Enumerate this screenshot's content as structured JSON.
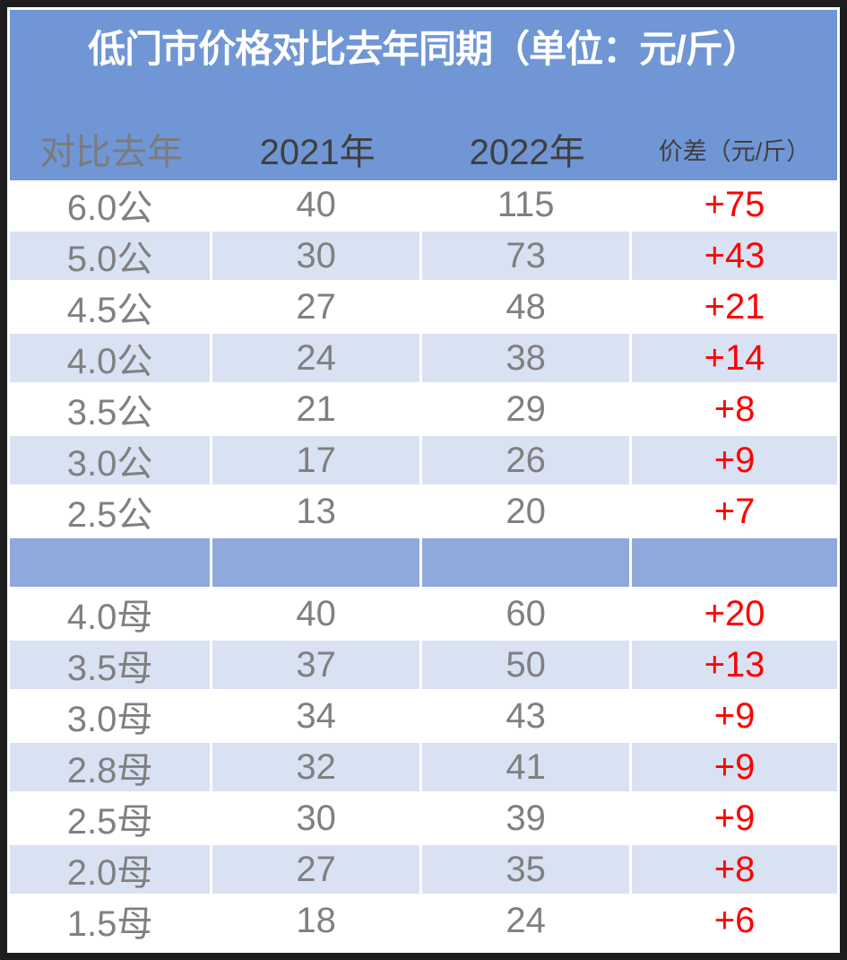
{
  "title": "低门市价格对比去年同期（单位：元/斤）",
  "colors": {
    "frame_border": "#1e1e1e",
    "header_band_bg": "#7096d5",
    "alt_row_bg": "#d9e2f3",
    "separator_row_bg": "#8fa9dc",
    "title_text": "#ffffff",
    "header_muted_text": "#7b7b7b",
    "header_dark_text": "#3f3f3f",
    "value_text": "#808080",
    "diff_text": "#ff0000"
  },
  "chart_data": {
    "type": "table",
    "title": "低门市价格对比去年同期（单位：元/斤）",
    "columns": [
      "对比去年",
      "2021年",
      "2022年",
      "价差（元/斤）"
    ],
    "sections": [
      {
        "rows": [
          {
            "label": "6.0公",
            "v2021": "40",
            "v2022": "115",
            "diff": "+75"
          },
          {
            "label": "5.0公",
            "v2021": "30",
            "v2022": "73",
            "diff": "+43"
          },
          {
            "label": "4.5公",
            "v2021": "27",
            "v2022": "48",
            "diff": "+21"
          },
          {
            "label": "4.0公",
            "v2021": "24",
            "v2022": "38",
            "diff": "+14"
          },
          {
            "label": "3.5公",
            "v2021": "21",
            "v2022": "29",
            "diff": "+8"
          },
          {
            "label": "3.0公",
            "v2021": "17",
            "v2022": "26",
            "diff": "+9"
          },
          {
            "label": "2.5公",
            "v2021": "13",
            "v2022": "20",
            "diff": "+7"
          }
        ]
      },
      {
        "rows": [
          {
            "label": "4.0母",
            "v2021": "40",
            "v2022": "60",
            "diff": "+20"
          },
          {
            "label": "3.5母",
            "v2021": "37",
            "v2022": "50",
            "diff": "+13"
          },
          {
            "label": "3.0母",
            "v2021": "34",
            "v2022": "43",
            "diff": "+9"
          },
          {
            "label": "2.8母",
            "v2021": "32",
            "v2022": "41",
            "diff": "+9"
          },
          {
            "label": "2.5母",
            "v2021": "30",
            "v2022": "39",
            "diff": "+9"
          },
          {
            "label": "2.0母",
            "v2021": "27",
            "v2022": "35",
            "diff": "+8"
          },
          {
            "label": "1.5母",
            "v2021": "18",
            "v2022": "24",
            "diff": "+6"
          }
        ]
      }
    ]
  }
}
